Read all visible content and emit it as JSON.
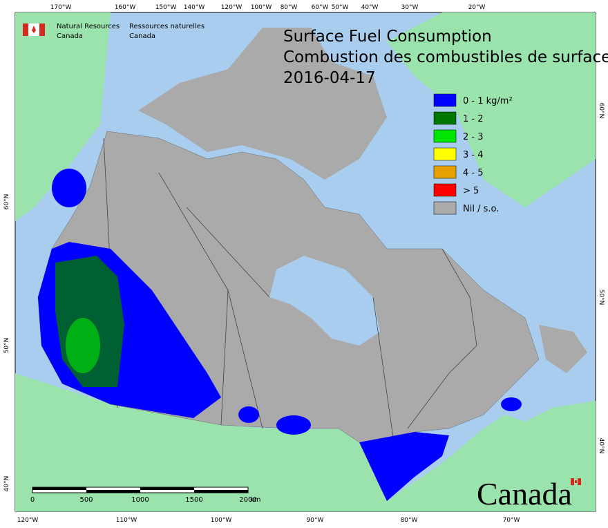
{
  "header": {
    "agency_en": [
      "Natural Resources",
      "Canada"
    ],
    "agency_fr": [
      "Ressources naturelles",
      "Canada"
    ]
  },
  "title": [
    "Surface Fuel Consumption",
    "Combustion des combustibles de surface",
    "2016-04-17"
  ],
  "legend": [
    {
      "label": "0 - 1 kg/m²",
      "color": "#0000ff"
    },
    {
      "label": "1 - 2",
      "color": "#007800"
    },
    {
      "label": "2 - 3",
      "color": "#00e600"
    },
    {
      "label": "3 - 4",
      "color": "#ffff00"
    },
    {
      "label": "4 - 5",
      "color": "#e6a000"
    },
    {
      "label": "> 5",
      "color": "#ff0000"
    },
    {
      "label": "Nil / s.o.",
      "color": "#aaaaaa"
    }
  ],
  "graticule": {
    "top": [
      "170°W",
      "160°W",
      "150°W",
      "140°W",
      "120°W",
      "100°W",
      "80°W",
      "60°W",
      "50°W",
      "40°W",
      "30°W",
      "20°W"
    ],
    "bottom": [
      "120°W",
      "110°W",
      "100°W",
      "90°W",
      "80°W",
      "70°W"
    ],
    "left": [
      "60°N",
      "50°N",
      "40°N"
    ],
    "right": [
      "60°N",
      "50°N",
      "40°N"
    ]
  },
  "scale_bar": {
    "labels": [
      "0",
      "500",
      "1000",
      "1500",
      "2000"
    ],
    "unit": "km"
  },
  "wordmark": "Canada"
}
